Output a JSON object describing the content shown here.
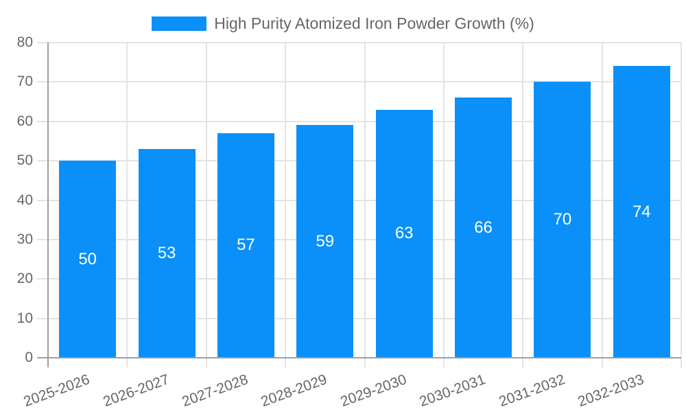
{
  "chart_data": {
    "type": "bar",
    "title": "High Purity Atomized Iron Powder Growth (%)",
    "categories": [
      "2025-2026",
      "2026-2027",
      "2027-2028",
      "2028-2029",
      "2029-2030",
      "2030-2031",
      "2031-2032",
      "2032-2033"
    ],
    "values": [
      50,
      53,
      57,
      59,
      63,
      66,
      70,
      74
    ],
    "xlabel": "",
    "ylabel": "",
    "ylim": [
      0,
      80
    ],
    "yticks": [
      0,
      10,
      20,
      30,
      40,
      50,
      60,
      70,
      80
    ],
    "grid": true,
    "legend_position": "top",
    "bar_label_position": "center-inside",
    "colors": {
      "bar": "#0a90f8",
      "bar_label": "#ffffff",
      "axis_text": "#666666",
      "grid_line": "#e3e3e3",
      "axis_line": "#9e9e9e",
      "background": "#ffffff"
    }
  }
}
